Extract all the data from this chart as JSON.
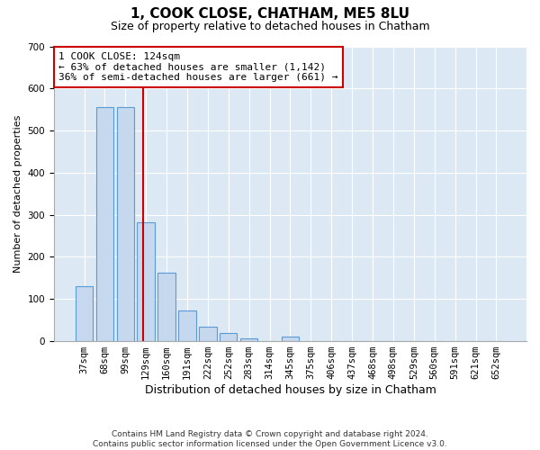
{
  "title": "1, COOK CLOSE, CHATHAM, ME5 8LU",
  "subtitle": "Size of property relative to detached houses in Chatham",
  "xlabel": "Distribution of detached houses by size in Chatham",
  "ylabel": "Number of detached properties",
  "categories": [
    "37sqm",
    "68sqm",
    "99sqm",
    "129sqm",
    "160sqm",
    "191sqm",
    "222sqm",
    "252sqm",
    "283sqm",
    "314sqm",
    "345sqm",
    "375sqm",
    "406sqm",
    "437sqm",
    "468sqm",
    "498sqm",
    "529sqm",
    "560sqm",
    "591sqm",
    "621sqm",
    "652sqm"
  ],
  "values": [
    130,
    555,
    555,
    283,
    163,
    73,
    34,
    20,
    7,
    0,
    10,
    0,
    0,
    0,
    0,
    0,
    0,
    0,
    0,
    0,
    0
  ],
  "bar_color": "#c5d8ed",
  "bar_edge_color": "#5b9bd5",
  "vline_x": 2.87,
  "vline_color": "#cc0000",
  "annotation_text": "1 COOK CLOSE: 124sqm\n← 63% of detached houses are smaller (1,142)\n36% of semi-detached houses are larger (661) →",
  "annotation_box_color": "#ffffff",
  "annotation_box_edge": "#cc0000",
  "ylim": [
    0,
    700
  ],
  "yticks": [
    0,
    100,
    200,
    300,
    400,
    500,
    600,
    700
  ],
  "bg_color": "#dce9f5",
  "footer": "Contains HM Land Registry data © Crown copyright and database right 2024.\nContains public sector information licensed under the Open Government Licence v3.0.",
  "title_fontsize": 11,
  "subtitle_fontsize": 9,
  "xlabel_fontsize": 9,
  "ylabel_fontsize": 8,
  "tick_fontsize": 7.5,
  "annotation_fontsize": 8,
  "footer_fontsize": 6.5
}
